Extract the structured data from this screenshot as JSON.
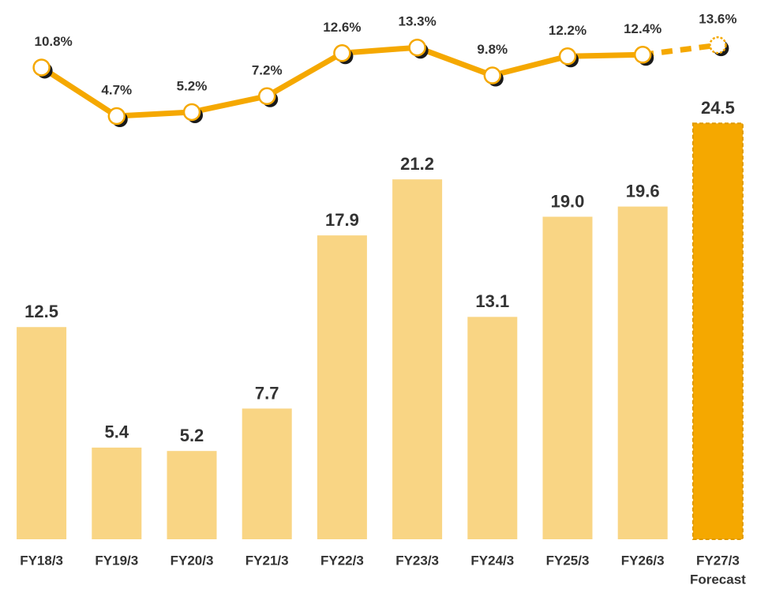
{
  "chart_data": {
    "type": "bar-line",
    "categories": [
      "FY18/3",
      "FY19/3",
      "FY20/3",
      "FY21/3",
      "FY22/3",
      "FY23/3",
      "FY24/3",
      "FY25/3",
      "FY26/3",
      "FY27/3"
    ],
    "forecast_label": "Forecast",
    "ylim": [
      0,
      30
    ],
    "y2lim": [
      -48.4,
      15.5
    ],
    "series": [
      {
        "type": "bar",
        "color": "#f9d584",
        "forecast_color": "#f5a800",
        "values": [
          12.5,
          5.4,
          5.2,
          7.7,
          17.9,
          21.2,
          13.1,
          19.0,
          19.6,
          24.5
        ],
        "value_labels": [
          "12.5",
          "5.4",
          "5.2",
          "7.7",
          "17.9",
          "21.2",
          "13.1",
          "19.0",
          "19.6",
          "24.5"
        ]
      },
      {
        "type": "line",
        "axis": "y2",
        "color": "#f5a800",
        "values": [
          10.8,
          4.7,
          5.2,
          7.2,
          12.6,
          13.3,
          9.8,
          12.2,
          12.4,
          13.6
        ],
        "value_labels": [
          "10.8%",
          "4.7%",
          "5.2%",
          "7.2%",
          "12.6%",
          "13.3%",
          "9.8%",
          "12.2%",
          "12.4%",
          "13.6%"
        ]
      }
    ]
  }
}
